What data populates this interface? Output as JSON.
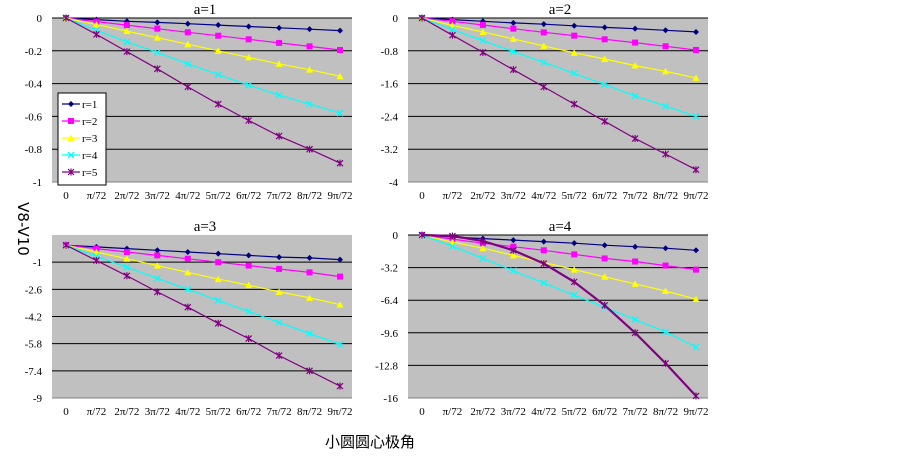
{
  "figure": {
    "ylabel": "V8-V10",
    "xlabel": "小圆圆心极角"
  },
  "colors": {
    "plot_bg": "#c0c0c0",
    "grid": "#000000",
    "r1": "#000080",
    "r2": "#ff00ff",
    "r3": "#ffff00",
    "r4": "#00ffff",
    "r5": "#800080"
  },
  "legend": {
    "entries": [
      "r=1",
      "r=2",
      "r=3",
      "r=4",
      "r=5"
    ]
  },
  "chart_data": [
    {
      "type": "line",
      "title": "a=1",
      "categories": [
        "0",
        "π/72",
        "2π/72",
        "3π/72",
        "4π/72",
        "5π/72",
        "6π/72",
        "7π/72",
        "8π/72",
        "9π/72"
      ],
      "x": [
        0,
        1,
        2,
        3,
        4,
        5,
        6,
        7,
        8,
        9
      ],
      "ylim": [
        -1,
        0
      ],
      "yticks": [
        "0",
        "-0.2",
        "-0.4",
        "-0.6",
        "-0.8",
        "-1"
      ],
      "ytick_values": [
        0,
        -0.2,
        -0.4,
        -0.6,
        -0.8,
        -1
      ],
      "grid": true,
      "legend": "left",
      "series": [
        {
          "name": "r=1",
          "marker": "diamond",
          "values": [
            0,
            -0.01,
            -0.02,
            -0.027,
            -0.035,
            -0.043,
            -0.052,
            -0.06,
            -0.068,
            -0.077
          ]
        },
        {
          "name": "r=2",
          "marker": "square",
          "values": [
            0,
            -0.022,
            -0.043,
            -0.065,
            -0.087,
            -0.108,
            -0.13,
            -0.152,
            -0.173,
            -0.195
          ]
        },
        {
          "name": "r=3",
          "marker": "triangle",
          "values": [
            0,
            -0.04,
            -0.08,
            -0.12,
            -0.16,
            -0.2,
            -0.24,
            -0.28,
            -0.315,
            -0.355
          ]
        },
        {
          "name": "r=4",
          "marker": "x",
          "values": [
            0,
            -0.075,
            -0.145,
            -0.21,
            -0.28,
            -0.345,
            -0.41,
            -0.47,
            -0.525,
            -0.58
          ]
        },
        {
          "name": "r=5",
          "marker": "star",
          "values": [
            0,
            -0.1,
            -0.205,
            -0.31,
            -0.42,
            -0.525,
            -0.625,
            -0.72,
            -0.8,
            -0.885
          ]
        }
      ]
    },
    {
      "type": "line",
      "title": "a=2",
      "categories": [
        "0",
        "π/72",
        "2π/72",
        "3π/72",
        "4π/72",
        "5π/72",
        "6π/72",
        "7π/72",
        "8π/72",
        "9π/72"
      ],
      "x": [
        0,
        1,
        2,
        3,
        4,
        5,
        6,
        7,
        8,
        9
      ],
      "ylim": [
        -4,
        0
      ],
      "yticks": [
        "0",
        "-0.8",
        "-1.6",
        "-2.4",
        "-3.2",
        "-4"
      ],
      "ytick_values": [
        0,
        -0.8,
        -1.6,
        -2.4,
        -3.2,
        -4
      ],
      "grid": true,
      "series": [
        {
          "name": "r=1",
          "marker": "diamond",
          "values": [
            0,
            -0.04,
            -0.08,
            -0.12,
            -0.15,
            -0.19,
            -0.23,
            -0.26,
            -0.3,
            -0.34
          ]
        },
        {
          "name": "r=2",
          "marker": "square",
          "values": [
            0,
            -0.08,
            -0.17,
            -0.26,
            -0.35,
            -0.43,
            -0.52,
            -0.6,
            -0.69,
            -0.78
          ]
        },
        {
          "name": "r=3",
          "marker": "triangle",
          "values": [
            0,
            -0.18,
            -0.34,
            -0.51,
            -0.68,
            -0.85,
            -1.0,
            -1.16,
            -1.3,
            -1.46
          ]
        },
        {
          "name": "r=4",
          "marker": "x",
          "values": [
            0,
            -0.28,
            -0.55,
            -0.82,
            -1.08,
            -1.35,
            -1.62,
            -1.9,
            -2.15,
            -2.4
          ]
        },
        {
          "name": "r=5",
          "marker": "star",
          "values": [
            0,
            -0.42,
            -0.84,
            -1.26,
            -1.68,
            -2.1,
            -2.52,
            -2.94,
            -3.32,
            -3.7
          ]
        }
      ]
    },
    {
      "type": "line",
      "title": "a=3",
      "categories": [
        "0",
        "π/72",
        "2π/72",
        "3π/72",
        "4π/72",
        "5π/72",
        "6π/72",
        "7π/72",
        "8π/72",
        "9π/72"
      ],
      "x": [
        0,
        1,
        2,
        3,
        4,
        5,
        6,
        7,
        8,
        9
      ],
      "ylim": [
        -9,
        0.6
      ],
      "yticks": [
        "-1",
        "-2.6",
        "-4.2",
        "-5.8",
        "-7.4",
        "-9"
      ],
      "ytick_values": [
        -1,
        -2.6,
        -4.2,
        -5.8,
        -7.4,
        -9
      ],
      "grid": true,
      "series": [
        {
          "name": "r=1",
          "marker": "diamond",
          "values": [
            0,
            -0.1,
            -0.2,
            -0.3,
            -0.4,
            -0.5,
            -0.6,
            -0.7,
            -0.75,
            -0.85
          ]
        },
        {
          "name": "r=2",
          "marker": "square",
          "values": [
            0,
            -0.2,
            -0.4,
            -0.6,
            -0.8,
            -1.0,
            -1.2,
            -1.4,
            -1.6,
            -1.85
          ]
        },
        {
          "name": "r=3",
          "marker": "triangle",
          "values": [
            0,
            -0.4,
            -0.8,
            -1.2,
            -1.6,
            -2.0,
            -2.35,
            -2.75,
            -3.1,
            -3.5
          ]
        },
        {
          "name": "r=4",
          "marker": "x",
          "values": [
            0,
            -0.65,
            -1.3,
            -1.95,
            -2.6,
            -3.25,
            -3.9,
            -4.55,
            -5.2,
            -5.85
          ]
        },
        {
          "name": "r=5",
          "marker": "star",
          "values": [
            0,
            -0.9,
            -1.8,
            -2.75,
            -3.65,
            -4.6,
            -5.5,
            -6.5,
            -7.4,
            -8.3
          ]
        }
      ]
    },
    {
      "type": "line",
      "title": "a=4",
      "categories": [
        "0",
        "π/72",
        "2π/72",
        "3π/72",
        "4π/72",
        "5π/72",
        "6π/72",
        "7π/72",
        "8π/72",
        "9π/72"
      ],
      "x": [
        0,
        1,
        2,
        3,
        4,
        5,
        6,
        7,
        8,
        9
      ],
      "ylim": [
        -16,
        0
      ],
      "yticks": [
        "0",
        "-3.2",
        "-6.4",
        "-9.6",
        "-12.8",
        "-16"
      ],
      "ytick_values": [
        0,
        -3.2,
        -6.4,
        -9.6,
        -12.8,
        -16
      ],
      "grid": true,
      "series": [
        {
          "name": "r=1",
          "marker": "diamond",
          "values": [
            0,
            -0.2,
            -0.35,
            -0.5,
            -0.65,
            -0.8,
            -1.0,
            -1.15,
            -1.3,
            -1.5
          ]
        },
        {
          "name": "r=2",
          "marker": "square",
          "values": [
            0,
            -0.4,
            -0.8,
            -1.15,
            -1.5,
            -1.9,
            -2.3,
            -2.6,
            -3.0,
            -3.4
          ]
        },
        {
          "name": "r=3",
          "marker": "triangle",
          "values": [
            0,
            -0.7,
            -1.3,
            -2.0,
            -2.7,
            -3.4,
            -4.1,
            -4.8,
            -5.5,
            -6.3
          ]
        },
        {
          "name": "r=4",
          "marker": "x",
          "values": [
            0,
            -1.1,
            -2.3,
            -3.5,
            -4.7,
            -5.9,
            -7.1,
            -8.3,
            -9.5,
            -11.0
          ]
        },
        {
          "name": "r=5",
          "marker": "star",
          "values": [
            0,
            -0.1,
            -0.6,
            -1.5,
            -2.8,
            -4.6,
            -6.9,
            -9.6,
            -12.6,
            -15.8
          ]
        }
      ]
    }
  ]
}
